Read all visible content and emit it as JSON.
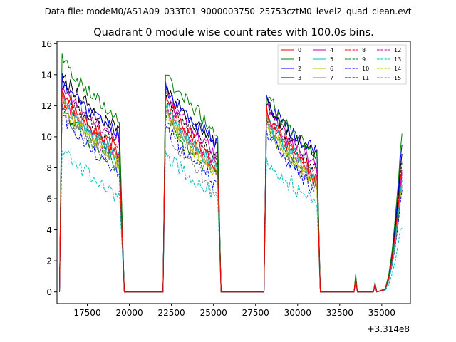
{
  "chart_data": {
    "type": "line",
    "suptitle": "Data file: modeM0/AS1A09_033T01_9000003750_25753cztM0_level2_quad_clean.evt",
    "title": "Quadrant 0 module wise count rates with 100.0s bins.",
    "xlabel": "",
    "ylabel": "",
    "x_offset_label": "+3.314e8",
    "xlim": [
      15700,
      36700
    ],
    "ylim": [
      -0.75,
      16.15
    ],
    "x_ticks": [
      17500,
      20000,
      22500,
      25000,
      27500,
      30000,
      32500,
      35000
    ],
    "x_tick_labels": [
      "17500",
      "20000",
      "22500",
      "25000",
      "27500",
      "30000",
      "32500",
      "35000"
    ],
    "y_ticks": [
      0,
      2,
      4,
      6,
      8,
      10,
      12,
      14,
      16
    ],
    "y_tick_labels": [
      "0",
      "2",
      "4",
      "6",
      "8",
      "10",
      "12",
      "14",
      "16"
    ],
    "legend_position": "upper-right",
    "segments": [
      {
        "start": 16000,
        "end": 19450,
        "fall_end": 19700
      },
      {
        "start": 22150,
        "end": 25250,
        "fall_end": 25450
      },
      {
        "start": 28150,
        "end": 31150,
        "fall_end": 31350
      }
    ],
    "post_gap": {
      "x": [
        31350,
        33350,
        33450,
        33550,
        34500,
        34600,
        34700,
        35200,
        35400,
        35600,
        35800,
        36000,
        36100,
        36200
      ],
      "frac": [
        0,
        0,
        0.11,
        0,
        0,
        0.06,
        0,
        0.02,
        0.1,
        0.25,
        0.45,
        0.72,
        0.88,
        0.98
      ]
    },
    "series": [
      {
        "name": "0",
        "color": "#ff0000",
        "dash": "solid",
        "levels": [
          [
            13.2,
            9.0
          ],
          [
            12.8,
            8.2
          ],
          [
            12.0,
            7.2
          ]
        ],
        "end_level": 8.2,
        "seed": 3
      },
      {
        "name": "1",
        "color": "#008000",
        "dash": "solid",
        "levels": [
          [
            15.3,
            11.0
          ],
          [
            14.2,
            10.4
          ],
          [
            12.9,
            8.6
          ]
        ],
        "end_level": 10.4,
        "seed": 7
      },
      {
        "name": "2",
        "color": "#0000ff",
        "dash": "solid",
        "levels": [
          [
            13.7,
            10.2
          ],
          [
            13.3,
            9.6
          ],
          [
            12.4,
            9.0
          ]
        ],
        "end_level": 9.5,
        "seed": 11
      },
      {
        "name": "3",
        "color": "#000000",
        "dash": "solid",
        "levels": [
          [
            14.0,
            10.4
          ],
          [
            13.2,
            9.7
          ],
          [
            12.5,
            8.8
          ]
        ],
        "end_level": 9.0,
        "seed": 13
      },
      {
        "name": "4",
        "color": "#bf00bf",
        "dash": "solid",
        "levels": [
          [
            13.5,
            9.6
          ],
          [
            12.9,
            8.9
          ],
          [
            12.1,
            8.1
          ]
        ],
        "end_level": 8.0,
        "seed": 17
      },
      {
        "name": "5",
        "color": "#00bfbf",
        "dash": "solid",
        "levels": [
          [
            12.8,
            8.6
          ],
          [
            12.1,
            8.0
          ],
          [
            11.4,
            7.3
          ]
        ],
        "end_level": 7.2,
        "seed": 19
      },
      {
        "name": "6",
        "color": "#bfbf00",
        "dash": "solid",
        "levels": [
          [
            12.5,
            8.3
          ],
          [
            11.8,
            7.6
          ],
          [
            11.1,
            7.0
          ]
        ],
        "end_level": 7.0,
        "seed": 23
      },
      {
        "name": "7",
        "color": "#808080",
        "dash": "solid",
        "levels": [
          [
            12.4,
            8.4
          ],
          [
            11.7,
            7.7
          ],
          [
            11.2,
            7.1
          ]
        ],
        "end_level": 7.0,
        "seed": 29
      },
      {
        "name": "8",
        "color": "#ff0000",
        "dash": "dashed",
        "levels": [
          [
            12.6,
            8.8
          ],
          [
            12.0,
            8.2
          ],
          [
            11.5,
            7.6
          ]
        ],
        "end_level": 7.6,
        "seed": 31
      },
      {
        "name": "9",
        "color": "#008000",
        "dash": "dashed",
        "levels": [
          [
            12.0,
            8.1
          ],
          [
            11.4,
            7.5
          ],
          [
            10.9,
            7.0
          ]
        ],
        "end_level": 7.0,
        "seed": 37
      },
      {
        "name": "10",
        "color": "#0000ff",
        "dash": "dashed",
        "levels": [
          [
            11.6,
            7.6
          ],
          [
            10.9,
            7.0
          ],
          [
            10.5,
            6.5
          ]
        ],
        "end_level": 6.6,
        "seed": 41
      },
      {
        "name": "11",
        "color": "#000000",
        "dash": "dashed",
        "levels": [
          [
            13.4,
            9.4
          ],
          [
            12.9,
            8.8
          ],
          [
            12.2,
            8.0
          ]
        ],
        "end_level": 8.6,
        "seed": 43
      },
      {
        "name": "12",
        "color": "#bf00bf",
        "dash": "dashed",
        "levels": [
          [
            12.7,
            8.7
          ],
          [
            12.1,
            8.1
          ],
          [
            11.5,
            7.4
          ]
        ],
        "end_level": 7.5,
        "seed": 47
      },
      {
        "name": "13",
        "color": "#00bfbf",
        "dash": "dashed",
        "levels": [
          [
            9.5,
            6.0
          ],
          [
            9.0,
            6.2
          ],
          [
            8.6,
            5.6
          ]
        ],
        "end_level": 4.4,
        "seed": 53
      },
      {
        "name": "14",
        "color": "#bfbf00",
        "dash": "dashed",
        "levels": [
          [
            12.2,
            8.5
          ],
          [
            11.6,
            7.8
          ],
          [
            11.0,
            7.1
          ]
        ],
        "end_level": 7.2,
        "seed": 59
      },
      {
        "name": "15",
        "color": "#808080",
        "dash": "dashed",
        "levels": [
          [
            11.8,
            7.9
          ],
          [
            10.8,
            6.4
          ],
          [
            10.6,
            6.6
          ]
        ],
        "end_level": 6.6,
        "seed": 61
      }
    ]
  }
}
